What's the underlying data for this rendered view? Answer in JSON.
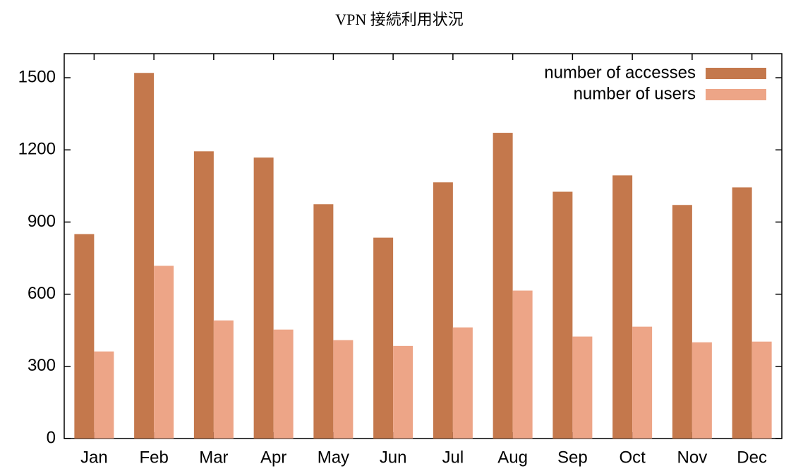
{
  "chart_data": {
    "type": "bar",
    "title": "VPN 接続利用状況",
    "categories": [
      "Jan",
      "Feb",
      "Mar",
      "Apr",
      "May",
      "Jun",
      "Jul",
      "Aug",
      "Sep",
      "Oct",
      "Nov",
      "Dec"
    ],
    "series": [
      {
        "name": "number of accesses",
        "color": "#c4784c",
        "values": [
          850,
          1520,
          1194,
          1168,
          974,
          835,
          1065,
          1271,
          1026,
          1094,
          971,
          1044
        ]
      },
      {
        "name": "number of users",
        "color": "#eda587",
        "values": [
          362,
          718,
          491,
          453,
          409,
          385,
          462,
          615,
          424,
          465,
          400,
          403
        ]
      }
    ],
    "ylim": [
      0,
      1600
    ],
    "yticks": [
      0,
      300,
      600,
      900,
      1200,
      1500
    ],
    "grid": false,
    "legend": "top-right"
  }
}
